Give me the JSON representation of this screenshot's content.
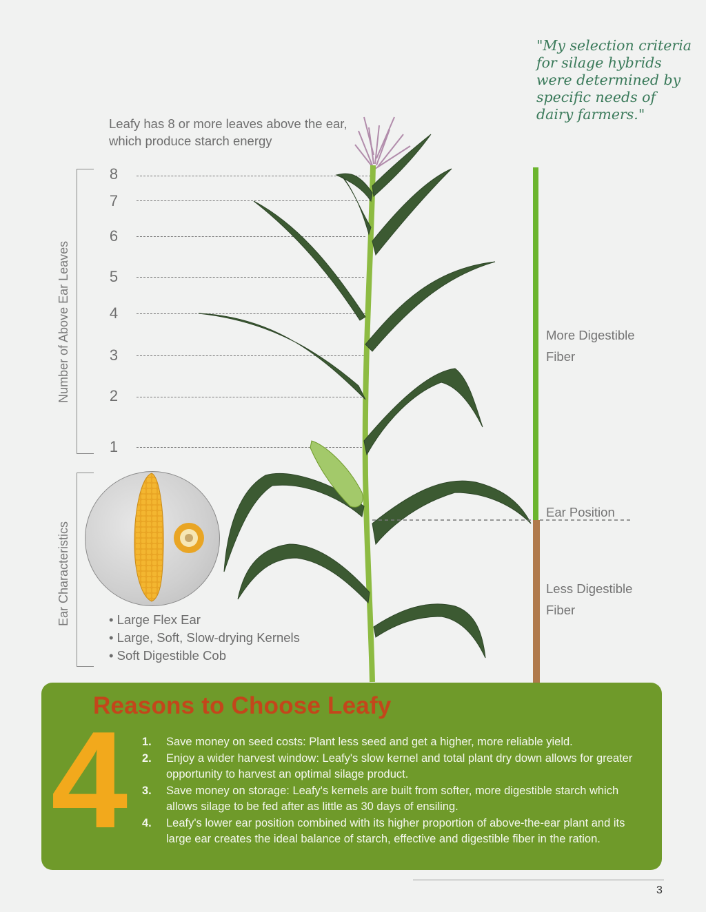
{
  "quote": "\"My selection criteria for silage hybrids were determined by specific needs of dairy farmers.\"",
  "leafy_note": "Leafy has 8 or more leaves above the ear, which produce starch energy",
  "axis_label_leaves": "Number of Above Ear Leaves",
  "axis_label_ear": "Ear Characteristics",
  "leaf_numbers": [
    "8",
    "7",
    "6",
    "5",
    "4",
    "3",
    "2",
    "1"
  ],
  "fiber": {
    "more": "More Digestible Fiber",
    "ear_position": "Ear Position",
    "less": "Less Digestible Fiber"
  },
  "ear_features": [
    "Large Flex Ear",
    "Large, Soft, Slow-drying Kernels",
    "Soft Digestible Cob"
  ],
  "reasons": {
    "title": "Reasons to Choose Leafy",
    "big_number": "4",
    "items": [
      {
        "num": "1.",
        "text": "Save money on seed costs: Plant less seed and get a higher, more reliable yield."
      },
      {
        "num": "2.",
        "text": "Enjoy a wider harvest window: Leafy's slow kernel and total plant dry down allows for greater opportunity to harvest an optimal silage product."
      },
      {
        "num": "3.",
        "text": "Save money on storage: Leafy's kernels are built from softer, more digestible starch which allows silage to be fed after as little as 30 days of ensiling."
      },
      {
        "num": "4.",
        "text": "Leafy's lower ear position combined with its higher proportion of above-the-ear plant and its large ear creates the ideal balance of  starch, effective and digestible fiber in the ration."
      }
    ]
  },
  "page_number": "3",
  "colors": {
    "panel_green": "#6f9a2a",
    "title_orange": "#c3461b",
    "number_yellow": "#f2a91c",
    "fiber_green": "#6cb52e",
    "fiber_brown": "#b07a4c",
    "quote_green": "#3a7a5a"
  }
}
